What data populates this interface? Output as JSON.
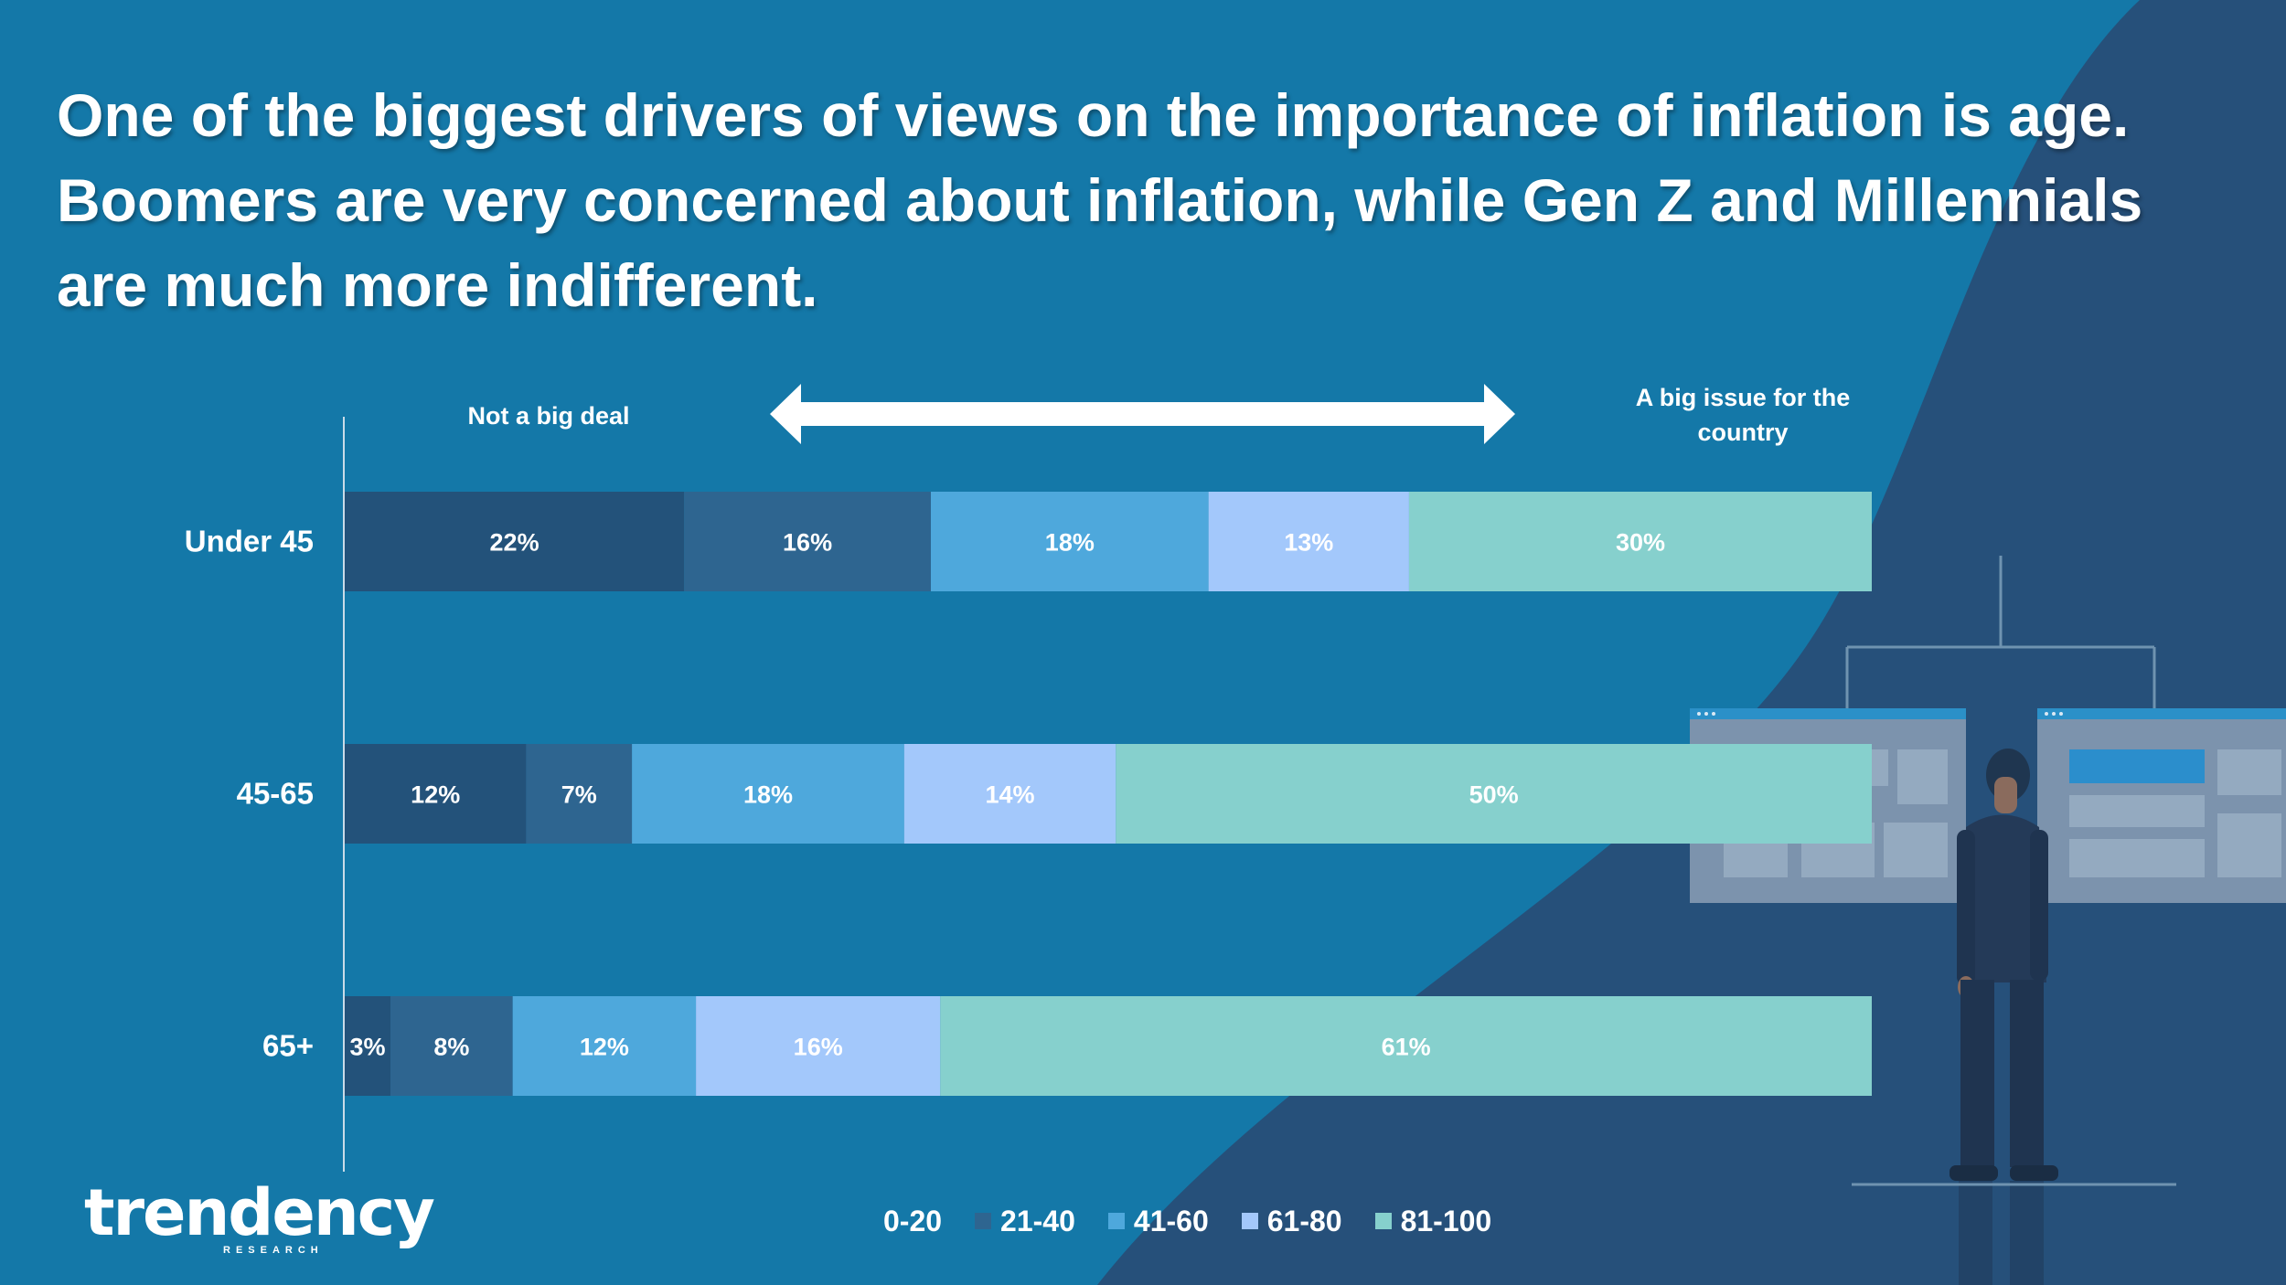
{
  "headline": {
    "line1": "One of the biggest drivers of views on the importance of inflation is age.",
    "line2": "Boomers are very concerned about inflation, while Gen Z and Millennials",
    "line3": "are much more indifferent."
  },
  "scale": {
    "left_label": "Not a big deal",
    "right_label_line1": "A big issue for the",
    "right_label_line2": "country"
  },
  "colors": {
    "background": "#1478a8",
    "dark_shape": "#26507a",
    "seg_0_20": "#23527a",
    "seg_21_40": "#2e6590",
    "seg_41_60": "#4ea8dc",
    "seg_61_80": "#a3c8fb",
    "seg_81_100": "#86d0cd"
  },
  "chart_data": {
    "type": "bar",
    "orientation": "horizontal",
    "stacked": true,
    "categories": [
      "Under 45",
      "45-65",
      "65+"
    ],
    "series": [
      {
        "name": "0-20",
        "values": [
          22,
          12,
          3
        ],
        "labels": [
          "22%",
          "12%",
          "3%"
        ]
      },
      {
        "name": "21-40",
        "values": [
          16,
          7,
          8
        ],
        "labels": [
          "16%",
          "7%",
          "8%"
        ]
      },
      {
        "name": "41-60",
        "values": [
          18,
          18,
          12
        ],
        "labels": [
          "18%",
          "18%",
          "12%"
        ]
      },
      {
        "name": "61-80",
        "values": [
          13,
          14,
          16
        ],
        "labels": [
          "13%",
          "14%",
          "16%"
        ]
      },
      {
        "name": "81-100",
        "values": [
          30,
          50,
          61
        ],
        "labels": [
          "30%",
          "50%",
          "61%"
        ]
      }
    ],
    "xlim": [
      0,
      100
    ],
    "legend_position": "bottom"
  },
  "legend": [
    "0-20",
    "21-40",
    "41-60",
    "61-80",
    "81-100"
  ],
  "logo": {
    "word": "trendency",
    "sub": "RESEARCH"
  }
}
